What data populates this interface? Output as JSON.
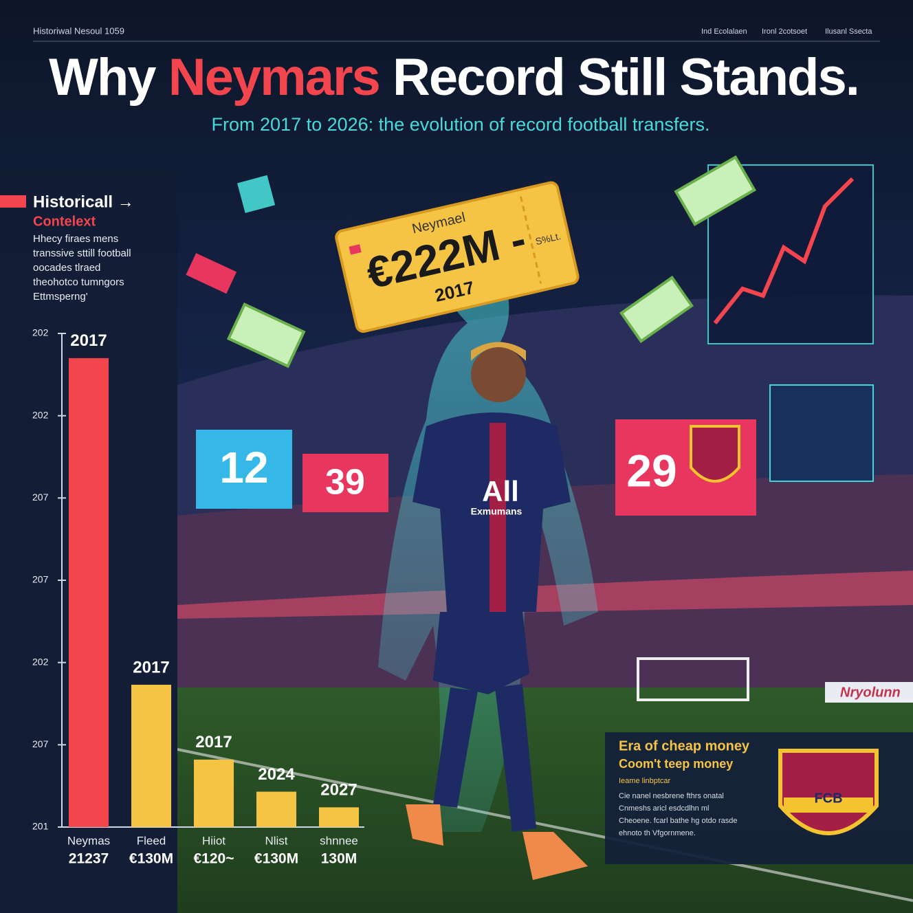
{
  "header": {
    "kicker": "Historiwal Nesoul 1059",
    "nav": [
      "Ind Ecolalaen",
      "Ironl 2cotsoet",
      "Ilusanl Ssecta"
    ]
  },
  "title": {
    "before": "Why",
    "highlight": "Neymars",
    "after": "Record Still Stands."
  },
  "subtitle": "From 2017 to 2026: the evolution of record football transfers.",
  "sidebar": {
    "heading": "Historicall →",
    "subheading": "Contelext",
    "lines": [
      "Hhecy firaes mens",
      "transsive sttill football",
      "oocades tlraed",
      "theohotco tumngors",
      "Ettmsperng'"
    ]
  },
  "ticket": {
    "name": "Neymael",
    "fee": "€222M -",
    "year": "2017",
    "stub": "S%Lt."
  },
  "scoreboards": [
    "12",
    "39",
    "29"
  ],
  "shirt": {
    "sponsor": "All",
    "sub": "Exmumans"
  },
  "crest": "FCB",
  "banner": "Nryolunn",
  "info_box": {
    "title": "Era of cheap money",
    "subtitle": "Coom't teep money",
    "tag": "Ieame linbptcar",
    "lines": [
      "Cie nanel nesbrene fthrs onatal",
      "Cnmeshs aricl esdcdlhn ml",
      "Cheoene. fcarl bathe hg otdo rasde",
      "ehnoto th Vfgornmene."
    ]
  },
  "chart_data": {
    "type": "bar",
    "categories": [
      "Neymas",
      "Fleed",
      "Hiiot",
      "Nlist",
      "shnnee"
    ],
    "category_sublabels": [
      "21237",
      "€130M",
      "€120~",
      "€130M",
      "130M"
    ],
    "bar_labels": [
      "2017",
      "2017",
      "2017",
      "2024",
      "2027"
    ],
    "values": [
      5.7,
      1.73,
      0.82,
      0.43,
      0.24
    ],
    "colors": [
      "#f2454e",
      "#f6c445",
      "#f6c445",
      "#f6c445",
      "#f6c445"
    ],
    "ylim": [
      0,
      6
    ],
    "yticks": [
      {
        "value": 0,
        "label": "201"
      },
      {
        "value": 1,
        "label": "207"
      },
      {
        "value": 2,
        "label": "202"
      },
      {
        "value": 3,
        "label": "207"
      },
      {
        "value": 4,
        "label": "207"
      },
      {
        "value": 5,
        "label": "202"
      },
      {
        "value": 6,
        "label": "202"
      }
    ]
  }
}
